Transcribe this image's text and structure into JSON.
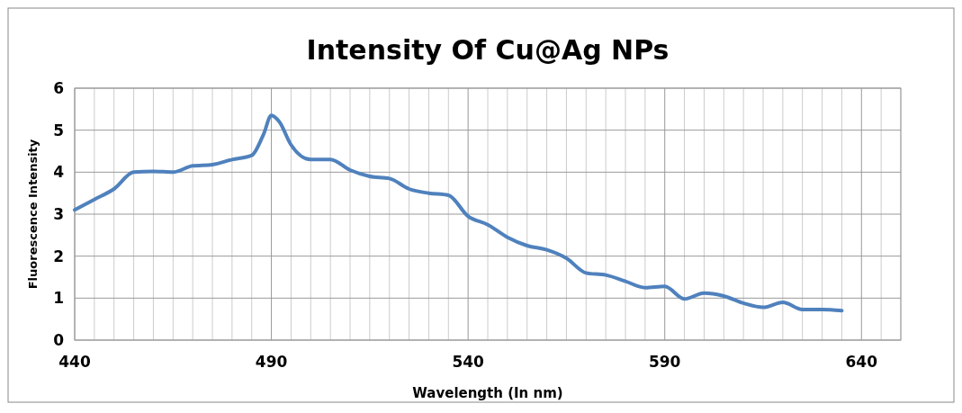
{
  "chart_data": {
    "type": "line",
    "title": "Intensity Of Cu@Ag NPs",
    "xlabel": "Wavelength (In nm)",
    "ylabel": "Fluorescence Intensity",
    "x": [
      440,
      445,
      450,
      455,
      460,
      465,
      470,
      475,
      480,
      485,
      488,
      490,
      492,
      495,
      500,
      505,
      510,
      515,
      520,
      525,
      530,
      535,
      540,
      545,
      550,
      555,
      560,
      565,
      570,
      575,
      580,
      585,
      590,
      595,
      600,
      605,
      610,
      615,
      620,
      625,
      630,
      635
    ],
    "series": [
      {
        "color": "#4f81bd",
        "values": [
          3.1,
          3.35,
          3.6,
          4.0,
          4.02,
          4.0,
          4.15,
          4.18,
          4.3,
          4.4,
          4.9,
          5.35,
          5.2,
          4.65,
          4.3,
          4.3,
          4.05,
          3.9,
          3.85,
          3.6,
          3.5,
          3.45,
          2.95,
          2.75,
          2.45,
          2.25,
          2.15,
          1.95,
          1.6,
          1.55,
          1.4,
          1.25,
          1.28,
          0.98,
          1.12,
          1.05,
          0.88,
          0.78,
          0.9,
          0.73,
          0.73,
          0.7
        ]
      }
    ],
    "xlim": [
      440,
      650
    ],
    "xticks": [
      440,
      {
        "value": 445,
        "label": null
      },
      {
        "value": 450,
        "label": null
      },
      {
        "value": 455,
        "label": null
      },
      {
        "value": 460,
        "label": null
      },
      {
        "value": 465,
        "label": null
      },
      {
        "value": 470,
        "label": null
      },
      {
        "value": 475,
        "label": null
      },
      {
        "value": 480,
        "label": null
      },
      {
        "value": 485,
        "label": null
      },
      490,
      {
        "value": 495,
        "label": null
      },
      {
        "value": 500,
        "label": null
      },
      {
        "value": 505,
        "label": null
      },
      {
        "value": 510,
        "label": null
      },
      {
        "value": 515,
        "label": null
      },
      {
        "value": 520,
        "label": null
      },
      {
        "value": 525,
        "label": null
      },
      {
        "value": 530,
        "label": null
      },
      {
        "value": 535,
        "label": null
      },
      540,
      {
        "value": 545,
        "label": null
      },
      {
        "value": 550,
        "label": null
      },
      {
        "value": 555,
        "label": null
      },
      {
        "value": 560,
        "label": null
      },
      {
        "value": 565,
        "label": null
      },
      {
        "value": 570,
        "label": null
      },
      {
        "value": 575,
        "label": null
      },
      {
        "value": 580,
        "label": null
      },
      {
        "value": 585,
        "label": null
      },
      590,
      {
        "value": 595,
        "label": null
      },
      {
        "value": 600,
        "label": null
      },
      {
        "value": 605,
        "label": null
      },
      {
        "value": 610,
        "label": null
      },
      {
        "value": 615,
        "label": null
      },
      {
        "value": 620,
        "label": null
      },
      {
        "value": 625,
        "label": null
      },
      {
        "value": 630,
        "label": null
      },
      {
        "value": 635,
        "label": null
      },
      640,
      {
        "value": 645,
        "label": null
      },
      {
        "value": 650,
        "label": null
      }
    ],
    "ylim": [
      0,
      6
    ],
    "yticks": [
      0,
      1,
      2,
      3,
      4,
      5,
      6
    ],
    "grid": true,
    "line_style": "solid",
    "marker": "none"
  }
}
